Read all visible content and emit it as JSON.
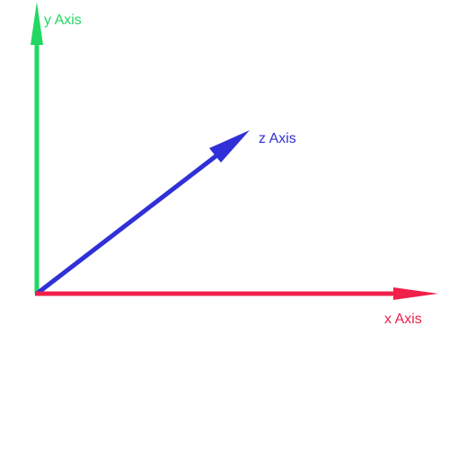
{
  "axes": {
    "x": {
      "label": "x Axis",
      "color": "#f0204a"
    },
    "y": {
      "label": "y Axis",
      "color": "#22d862"
    },
    "z": {
      "label": "z Axis",
      "color": "#3030d8"
    }
  }
}
